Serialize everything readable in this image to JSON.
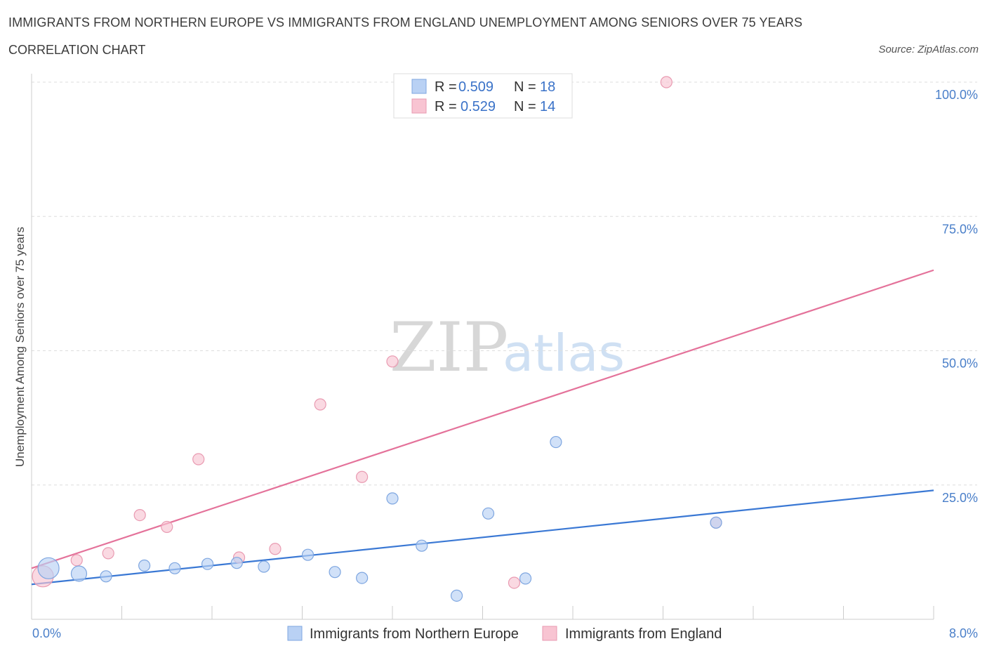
{
  "header": {
    "title": "IMMIGRANTS FROM NORTHERN EUROPE VS IMMIGRANTS FROM ENGLAND UNEMPLOYMENT AMONG SENIORS OVER 75 YEARS",
    "subtitle": "CORRELATION CHART",
    "source": "Source: ZipAtlas.com"
  },
  "watermark": {
    "zip": "ZIP",
    "atlas": "atlas"
  },
  "legend": {
    "blue": {
      "r_label": "R =",
      "r_value": "0.509",
      "n_label": "N =",
      "n_value": "18"
    },
    "pink": {
      "r_label": "R =",
      "r_value": "0.529",
      "n_label": "N =",
      "n_value": "14"
    }
  },
  "colors": {
    "blue_fill": "#b9d1f4",
    "blue_stroke": "#7ea6e0",
    "blue_line": "#3a78d4",
    "pink_fill": "#f8c4d2",
    "pink_stroke": "#e99ab1",
    "pink_line": "#e4729a",
    "tick_text": "#4a7fc9"
  },
  "chart_data": {
    "type": "scatter",
    "title": "IMMIGRANTS FROM NORTHERN EUROPE VS IMMIGRANTS FROM ENGLAND UNEMPLOYMENT AMONG SENIORS OVER 75 YEARS",
    "subtitle": "CORRELATION CHART",
    "xlabel": "",
    "ylabel": "Unemployment Among Seniors over 75 years",
    "xlim": [
      0,
      8
    ],
    "ylim": [
      0,
      100
    ],
    "x_tick_labels": [
      "0.0%",
      "8.0%"
    ],
    "y_tick_labels": [
      "25.0%",
      "50.0%",
      "75.0%",
      "100.0%"
    ],
    "y_ticks": [
      25,
      50,
      75,
      100
    ],
    "grid": "horizontal dashed",
    "legend_position": "top-center",
    "series": [
      {
        "name": "Immigrants from Northern Europe",
        "color": "blue",
        "r": 0.509,
        "n": 18,
        "points": [
          {
            "x": 0.15,
            "y": 9.5,
            "size": "large"
          },
          {
            "x": 0.42,
            "y": 8.5,
            "size": "medium"
          },
          {
            "x": 0.66,
            "y": 8.0,
            "size": "small"
          },
          {
            "x": 1.0,
            "y": 10.0,
            "size": "small"
          },
          {
            "x": 1.27,
            "y": 9.5,
            "size": "small"
          },
          {
            "x": 1.56,
            "y": 10.3,
            "size": "small"
          },
          {
            "x": 1.82,
            "y": 10.5,
            "size": "small"
          },
          {
            "x": 2.06,
            "y": 9.8,
            "size": "small"
          },
          {
            "x": 2.45,
            "y": 12.0,
            "size": "small"
          },
          {
            "x": 2.69,
            "y": 8.8,
            "size": "small"
          },
          {
            "x": 2.93,
            "y": 7.7,
            "size": "small"
          },
          {
            "x": 3.2,
            "y": 22.5,
            "size": "small"
          },
          {
            "x": 3.46,
            "y": 13.7,
            "size": "small"
          },
          {
            "x": 3.77,
            "y": 4.4,
            "size": "small"
          },
          {
            "x": 4.05,
            "y": 19.7,
            "size": "small"
          },
          {
            "x": 4.38,
            "y": 7.6,
            "size": "small"
          },
          {
            "x": 4.65,
            "y": 33.0,
            "size": "small"
          },
          {
            "x": 6.07,
            "y": 18.0,
            "size": "small"
          }
        ],
        "trend": {
          "x0": 0,
          "y0": 6.5,
          "x1": 8,
          "y1": 24.0
        }
      },
      {
        "name": "Immigrants from England",
        "color": "pink",
        "r": 0.529,
        "n": 14,
        "points": [
          {
            "x": 0.1,
            "y": 8.0,
            "size": "large"
          },
          {
            "x": 0.4,
            "y": 11.0,
            "size": "small"
          },
          {
            "x": 0.68,
            "y": 12.3,
            "size": "small"
          },
          {
            "x": 0.96,
            "y": 19.4,
            "size": "small"
          },
          {
            "x": 1.2,
            "y": 17.2,
            "size": "small"
          },
          {
            "x": 1.48,
            "y": 29.8,
            "size": "small"
          },
          {
            "x": 1.84,
            "y": 11.5,
            "size": "small"
          },
          {
            "x": 2.16,
            "y": 13.1,
            "size": "small"
          },
          {
            "x": 2.56,
            "y": 40.0,
            "size": "small"
          },
          {
            "x": 2.93,
            "y": 26.5,
            "size": "small"
          },
          {
            "x": 3.2,
            "y": 48.0,
            "size": "small"
          },
          {
            "x": 4.28,
            "y": 6.8,
            "size": "small"
          },
          {
            "x": 5.63,
            "y": 100.0,
            "size": "small"
          },
          {
            "x": 6.07,
            "y": 18.0,
            "size": "small"
          }
        ],
        "trend": {
          "x0": 0,
          "y0": 9.5,
          "x1": 8,
          "y1": 65.0
        }
      }
    ]
  }
}
